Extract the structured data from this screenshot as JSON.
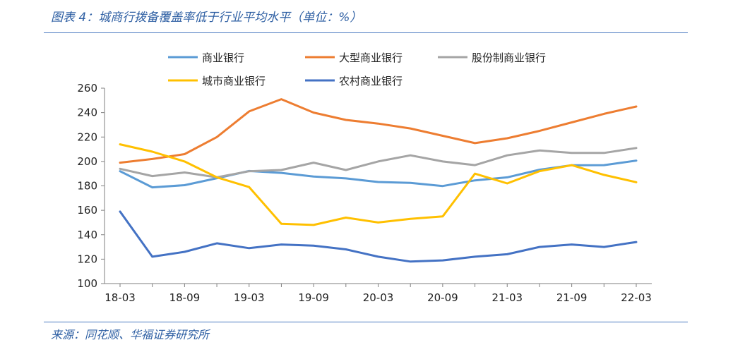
{
  "header": {
    "title": "图表 4：城商行拨备覆盖率低于行业平均水平（单位：%）"
  },
  "footer": {
    "source": "来源：同花顺、华福证券研究所"
  },
  "chart_data": {
    "type": "line",
    "x": [
      "18-03",
      "18-06",
      "18-09",
      "18-12",
      "19-03",
      "19-06",
      "19-09",
      "19-12",
      "20-03",
      "20-06",
      "20-09",
      "20-12",
      "21-03",
      "21-06",
      "21-09",
      "21-12",
      "22-03"
    ],
    "x_tick_labels": [
      "18-03",
      "18-09",
      "19-03",
      "19-09",
      "20-03",
      "20-09",
      "21-03",
      "21-09",
      "22-03"
    ],
    "y_ticks": [
      100,
      120,
      140,
      160,
      180,
      200,
      220,
      240,
      260
    ],
    "ylim": [
      100,
      260
    ],
    "grid": false,
    "legend_position": "top",
    "series": [
      {
        "name": "商业银行",
        "color": "#5b9bd5",
        "values": [
          192.0,
          178.8,
          180.6,
          186.3,
          192.2,
          190.6,
          187.6,
          186.1,
          183.2,
          182.4,
          179.9,
          184.5,
          187.0,
          193.2,
          196.9,
          197.0,
          200.7
        ]
      },
      {
        "name": "大型商业银行",
        "color": "#ed7d31",
        "values": [
          199,
          202,
          206,
          220,
          241,
          251,
          240,
          234,
          231,
          227,
          221,
          215,
          219,
          225,
          232,
          239,
          245
        ]
      },
      {
        "name": "股份制商业银行",
        "color": "#a5a5a5",
        "values": [
          194,
          188,
          191,
          187,
          192,
          193,
          199,
          193,
          200,
          205,
          200,
          197,
          205,
          209,
          207,
          207,
          211
        ]
      },
      {
        "name": "城市商业银行",
        "color": "#ffc000",
        "values": [
          214,
          208,
          200,
          187,
          179,
          149,
          148,
          154,
          150,
          153,
          155,
          190,
          182,
          192,
          197,
          189,
          183
        ]
      },
      {
        "name": "农村商业银行",
        "color": "#4472c4",
        "values": [
          159,
          122,
          126,
          133,
          129,
          132,
          131,
          128,
          122,
          118,
          119,
          122,
          124,
          130,
          132,
          130,
          134
        ]
      }
    ]
  }
}
